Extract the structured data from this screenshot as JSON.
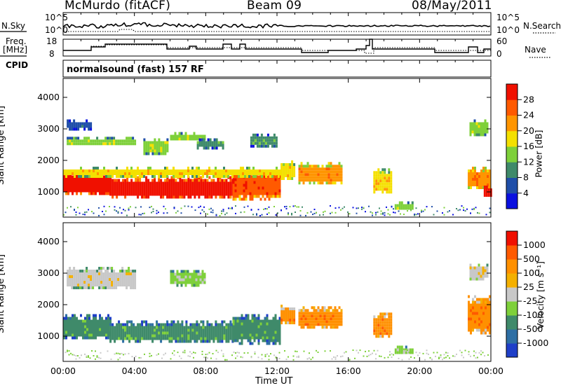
{
  "header": {
    "station": "McMurdo (fitACF)",
    "beam": "Beam 09",
    "date": "08/May/2011"
  },
  "top_panels": {
    "nsky_label": "N.Sky",
    "nsky_tick_hi": "10^5",
    "nsky_tick_lo": "10^0",
    "nsearch_label": "N.Search",
    "nsearch_tick_hi": "10^5",
    "nsearch_tick_lo": "10^0",
    "freq_label_1": "Freq.",
    "freq_label_2": "[MHz]",
    "freq_tick_hi": "18",
    "freq_tick_lo": "8",
    "nave_label": "Nave",
    "nave_tick_hi": "60",
    "nave_tick_lo": "0",
    "cpid_label": "CPID",
    "cpid_value": "normalsound (fast) 157 RF"
  },
  "chart_data": [
    {
      "type": "heatmap",
      "panel": "power",
      "ylabel": "Slant Range [km]",
      "xlabel": "Time UT",
      "ylim": [
        200,
        4600
      ],
      "xlim": [
        0,
        24
      ],
      "y_ticks": [
        "1000",
        "2000",
        "3000",
        "4000"
      ],
      "x_ticks": [
        "00:00",
        "04:00",
        "08:00",
        "12:00",
        "16:00",
        "20:00",
        "00:00"
      ],
      "colorbar": {
        "label": "Power [dB]",
        "ticks": [
          "4",
          "8",
          "12",
          "16",
          "20",
          "24",
          "28"
        ],
        "colors": [
          "#0a10e0",
          "#1f4ea8",
          "#3f8a6a",
          "#7ed03a",
          "#f4e000",
          "#ff9500",
          "#ff5a00",
          "#f01000"
        ]
      },
      "regions": [
        {
          "t0": 0.0,
          "t1": 2.6,
          "r0": 950,
          "r1": 1700,
          "level": 7
        },
        {
          "t0": 2.6,
          "t1": 5.8,
          "r0": 850,
          "r1": 1500,
          "level": 7
        },
        {
          "t0": 5.8,
          "t1": 9.5,
          "r0": 800,
          "r1": 1500,
          "level": 7
        },
        {
          "t0": 9.5,
          "t1": 12.2,
          "r0": 800,
          "r1": 1700,
          "level": 6
        },
        {
          "t0": 0.0,
          "t1": 12.2,
          "r0": 1500,
          "r1": 1800,
          "level": 4
        },
        {
          "t0": 12.2,
          "t1": 13.0,
          "r0": 1400,
          "r1": 2000,
          "level": 4
        },
        {
          "t0": 13.2,
          "t1": 15.6,
          "r0": 1300,
          "r1": 1950,
          "level": 5
        },
        {
          "t0": 17.4,
          "t1": 18.4,
          "r0": 1000,
          "r1": 1750,
          "level": 4
        },
        {
          "t0": 18.6,
          "t1": 19.6,
          "r0": 450,
          "r1": 700,
          "level": 3
        },
        {
          "t0": 22.7,
          "t1": 23.9,
          "r0": 1100,
          "r1": 1800,
          "level": 5
        },
        {
          "t0": 23.6,
          "t1": 24.0,
          "r0": 850,
          "r1": 1200,
          "level": 7
        },
        {
          "t0": 0.2,
          "t1": 1.5,
          "r0": 3000,
          "r1": 3300,
          "level": 1
        },
        {
          "t0": 0.2,
          "t1": 4.0,
          "r0": 2500,
          "r1": 2750,
          "level": 3
        },
        {
          "t0": 4.5,
          "t1": 5.8,
          "r0": 2200,
          "r1": 2700,
          "level": 3
        },
        {
          "t0": 6.0,
          "t1": 8.0,
          "r0": 2650,
          "r1": 2900,
          "level": 3
        },
        {
          "t0": 7.5,
          "t1": 9.0,
          "r0": 2400,
          "r1": 2700,
          "level": 2
        },
        {
          "t0": 10.5,
          "t1": 12.0,
          "r0": 2450,
          "r1": 2850,
          "level": 2
        },
        {
          "t0": 22.8,
          "t1": 23.8,
          "r0": 2800,
          "r1": 3300,
          "level": 3
        }
      ]
    },
    {
      "type": "heatmap",
      "panel": "velocity",
      "ylabel": "Slant Range [km]",
      "xlabel": "Time UT",
      "ylim": [
        200,
        4600
      ],
      "xlim": [
        0,
        24
      ],
      "y_ticks": [
        "1000",
        "2000",
        "3000",
        "4000"
      ],
      "x_ticks": [
        "00:00",
        "04:00",
        "08:00",
        "12:00",
        "16:00",
        "20:00",
        "00:00"
      ],
      "colorbar": {
        "label": "Velocity [m s⁻¹]",
        "ticks": [
          "1000",
          "500",
          "100",
          "25",
          "-25",
          "-100",
          "-500",
          "-1000"
        ],
        "colors": [
          "#1f3fc8",
          "#2e6fa4",
          "#3f8a6a",
          "#7ed03a",
          "#c8c8c8",
          "#f4b000",
          "#ff9000",
          "#ff5a00",
          "#f01000"
        ]
      },
      "regions": [
        {
          "t0": 0.0,
          "t1": 2.6,
          "r0": 950,
          "r1": 1700,
          "level": 2
        },
        {
          "t0": 2.6,
          "t1": 5.8,
          "r0": 850,
          "r1": 1500,
          "level": 2
        },
        {
          "t0": 5.8,
          "t1": 9.5,
          "r0": 800,
          "r1": 1500,
          "level": 2
        },
        {
          "t0": 9.5,
          "t1": 12.2,
          "r0": 800,
          "r1": 1700,
          "level": 2
        },
        {
          "t0": 12.2,
          "t1": 13.0,
          "r0": 1400,
          "r1": 2000,
          "level": 6
        },
        {
          "t0": 13.2,
          "t1": 15.6,
          "r0": 1300,
          "r1": 1950,
          "level": 6
        },
        {
          "t0": 17.4,
          "t1": 18.4,
          "r0": 1000,
          "r1": 1750,
          "level": 6
        },
        {
          "t0": 18.6,
          "t1": 19.6,
          "r0": 450,
          "r1": 700,
          "level": 3
        },
        {
          "t0": 22.7,
          "t1": 23.9,
          "r0": 1100,
          "r1": 2300,
          "level": 6
        },
        {
          "t0": 0.2,
          "t1": 4.0,
          "r0": 2500,
          "r1": 3200,
          "level": 4
        },
        {
          "t0": 6.0,
          "t1": 8.0,
          "r0": 2650,
          "r1": 3100,
          "level": 3
        },
        {
          "t0": 22.8,
          "t1": 23.8,
          "r0": 2800,
          "r1": 3300,
          "level": 4
        }
      ]
    }
  ]
}
